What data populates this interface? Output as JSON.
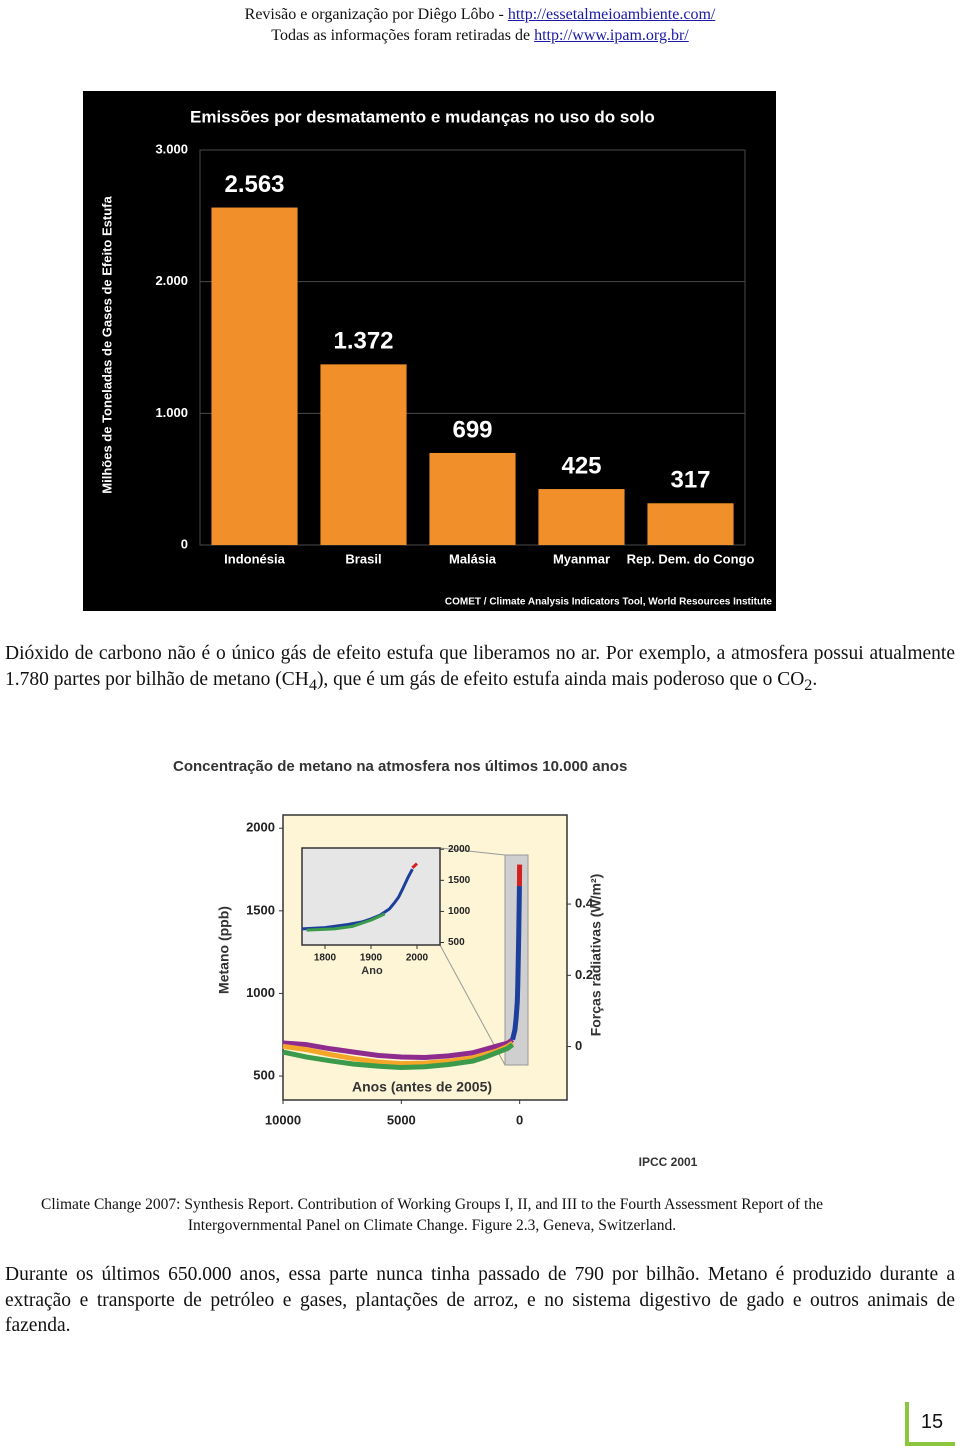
{
  "header": {
    "line1": "Revisão e organização por Diêgo Lôbo - ",
    "link1": "http://essetalmeioambiente.com/",
    "line2": "Todas as informações foram retiradas de ",
    "link2": "http://www.ipam.org.br/"
  },
  "paragraph1": [
    "Dióxido de carbono não é o único gás de efeito estufa que liberamos no ar. Por exemplo, a atmosfera possui atualmente 1.780 partes por bilhão de metano (CH",
    "4",
    "), que é um gás de efeito estufa ainda mais poderoso que o CO",
    "2",
    "."
  ],
  "caption": "Climate Change 2007: Synthesis Report. Contribution of Working Groups I, II, and III to the Fourth Assessment Report of the Intergovernmental Panel on Climate Change. Figure 2.3, Geneva, Switzerland.",
  "paragraph2": "Durante os últimos 650.000 anos, essa parte nunca tinha passado de 790 por bilhão. Metano é produzido durante a extração e transporte de petróleo e gases, plantações de arroz, e no sistema digestivo de gado e outros animais de fazenda.",
  "page_number": "15",
  "chart_data": [
    {
      "type": "bar",
      "title": "Emissões por desmatamento e mudanças no uso do solo",
      "y_label": "Milhões de Toneladas de Gases de Efeito Estufa",
      "source": "COMET / Climate Analysis Indicators Tool, World Resources Institute",
      "categories": [
        "Indonésia",
        "Brasil",
        "Malásia",
        "Myanmar",
        "Rep. Dem. do Congo"
      ],
      "values": [
        2563,
        1372,
        699,
        425,
        317
      ],
      "value_labels": [
        "2.563",
        "1.372",
        "699",
        "425",
        "317"
      ],
      "color": "#f1902a",
      "ylim": [
        0,
        3000
      ],
      "yticks": [
        0,
        {
          "value": 1000,
          "label": "1.000"
        },
        {
          "value": 2000,
          "label": "2.000"
        },
        {
          "value": 3000,
          "label": "3.000"
        }
      ],
      "grid": true
    },
    {
      "type": "line",
      "title": "Concentração de metano na atmosfera nos últimos 10.000 anos",
      "y_label": "Metano (ppb)",
      "x_label": "Anos (antes de 2005)",
      "y2_label": "Forças radiativas (W/m²)",
      "source": "IPCC 2001",
      "xlim": [
        10000,
        -2000
      ],
      "xticks": [
        10000,
        5000,
        0
      ],
      "ylim": [
        355,
        2080
      ],
      "yticks": [
        500,
        1000,
        1500,
        2000
      ],
      "y2lim": [
        -0.15,
        0.65
      ],
      "y2ticks": [
        0,
        0.2,
        0.4
      ],
      "series": [
        {
          "color": "#8e2b8f",
          "x": [
            10000,
            9000,
            8000,
            7000,
            6000,
            5000,
            4000,
            3000,
            2000,
            1500,
            1000,
            500,
            300
          ],
          "values": [
            700,
            690,
            665,
            645,
            625,
            615,
            612,
            622,
            640,
            660,
            680,
            700,
            720
          ]
        },
        {
          "color": "#f4a628",
          "x": [
            10000,
            9000,
            8000,
            7000,
            6000,
            5000,
            4000,
            3000,
            2000,
            1500,
            1000,
            500,
            300
          ],
          "values": [
            680,
            660,
            630,
            605,
            585,
            575,
            578,
            590,
            610,
            630,
            650,
            680,
            700
          ]
        },
        {
          "color": "#3b9b4b",
          "x": [
            10000,
            9000,
            8000,
            7000,
            6000,
            5000,
            4000,
            3000,
            2000,
            1500,
            1000,
            500,
            300
          ],
          "values": [
            645,
            615,
            592,
            572,
            560,
            552,
            556,
            570,
            590,
            612,
            640,
            668,
            690
          ]
        },
        {
          "color": "#1c3f9c",
          "x": [
            300,
            200,
            150,
            100,
            80,
            60,
            40,
            30,
            20,
            10
          ],
          "values": [
            720,
            780,
            850,
            950,
            1050,
            1200,
            1350,
            1450,
            1550,
            1650
          ]
        },
        {
          "color": "#d62020",
          "x": [
            10,
            5,
            2
          ],
          "values": [
            1650,
            1740,
            1780
          ]
        }
      ]
    },
    {
      "type": "line",
      "x_label": "Ano",
      "xlim": [
        1750,
        2050
      ],
      "xticks": [
        1800,
        1900,
        2000
      ],
      "ylim": [
        460,
        2020
      ],
      "yticks": [
        500,
        1000,
        1500,
        2000
      ],
      "series": [
        {
          "color": "#1c3f9c",
          "x": [
            1750,
            1800,
            1850,
            1880,
            1900,
            1920,
            1940,
            1950,
            1960,
            1970,
            1980,
            1990
          ],
          "values": [
            720,
            740,
            790,
            830,
            880,
            940,
            1040,
            1130,
            1230,
            1380,
            1540,
            1680
          ]
        },
        {
          "color": "#3b9b4b",
          "x": [
            1760,
            1820,
            1860,
            1900,
            1930
          ],
          "values": [
            700,
            720,
            760,
            860,
            960
          ]
        },
        {
          "color": "#d62020",
          "x": [
            1990,
            2000
          ],
          "values": [
            1700,
            1770
          ]
        }
      ]
    }
  ]
}
